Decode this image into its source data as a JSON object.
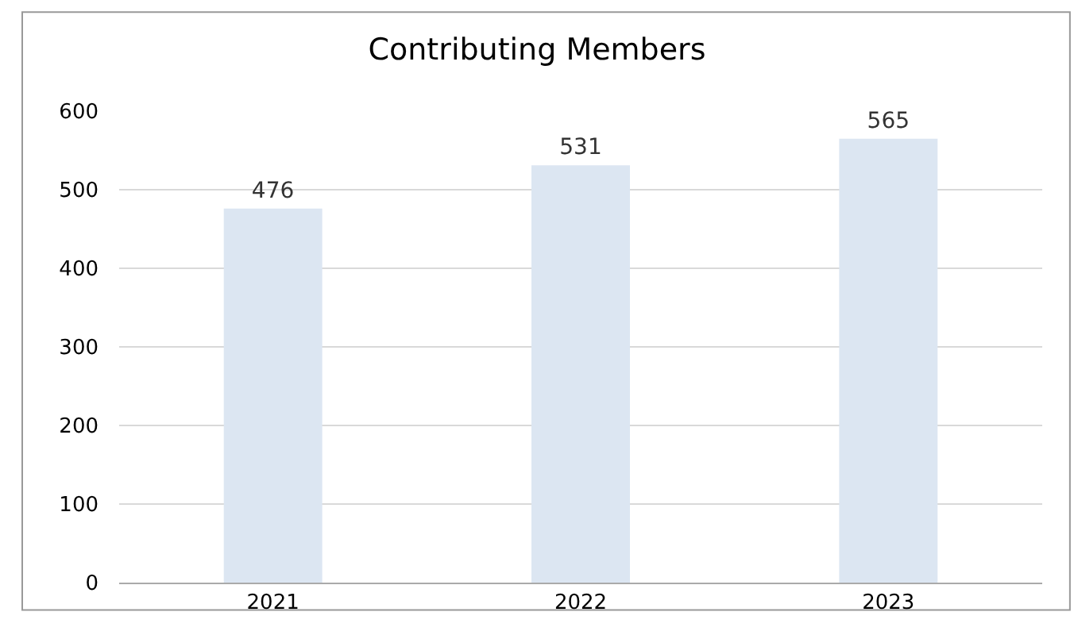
{
  "chart_data": {
    "type": "bar",
    "title": "Contributing Members",
    "categories": [
      "2021",
      "2022",
      "2023"
    ],
    "values": [
      476,
      531,
      565
    ],
    "color": "#dce6f2",
    "ylim": [
      0,
      600
    ],
    "yticks": [
      0,
      100,
      200,
      300,
      400,
      500,
      600
    ],
    "grid": "y",
    "data_labels": true
  }
}
